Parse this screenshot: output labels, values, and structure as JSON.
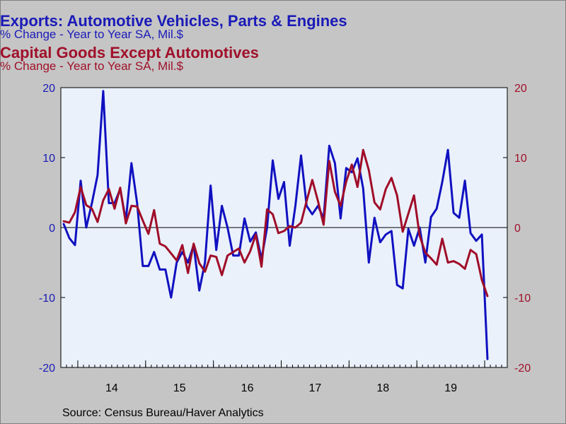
{
  "titles": {
    "series1_title": "Exports: Automotive Vehicles, Parts & Engines",
    "series1_subtitle": "% Change - Year to Year    SA, Mil.$",
    "series2_title": "Capital Goods Except Automotives",
    "series2_subtitle": "% Change - Year to Year    SA, Mil.$"
  },
  "source": "Source:  Census Bureau/Haver Analytics",
  "colors": {
    "series1": "#1010c0",
    "series2": "#a00c28",
    "plot_bg": "#eaf1fb",
    "page_bg": "#c5c5c5"
  },
  "chart_data": {
    "type": "line",
    "ylim_left": [
      -20,
      20
    ],
    "ylim_right": [
      -20,
      20
    ],
    "yticks_left": [
      "20",
      "10",
      "0",
      "-10",
      "-20"
    ],
    "yticks_right": [
      "20",
      "10",
      "0",
      "-10",
      "-20"
    ],
    "xtick_labels": [
      "14",
      "15",
      "16",
      "17",
      "18",
      "19"
    ],
    "x_start": "2013-10",
    "x_end": "2020-04",
    "grid": false,
    "zero_line": true,
    "series": [
      {
        "name": "Exports: Automotive Vehicles, Parts & Engines",
        "axis": "left",
        "values": [
          0.5,
          -1.5,
          -2.5,
          6.7,
          0,
          3.5,
          7.5,
          19.5,
          3.5,
          3.5,
          5.5,
          1,
          9.2,
          3.5,
          -5.5,
          -5.5,
          -3.5,
          -6,
          -6,
          -10,
          -5,
          -3.5,
          -5,
          -2.5,
          -9,
          -5,
          6,
          -3.2,
          3.1,
          0,
          -4,
          -4,
          1.3,
          -2,
          -0.7,
          -4.5,
          0,
          9.6,
          4.1,
          6.5,
          -2.6,
          3.1,
          10.3,
          3.1,
          1.9,
          3.1,
          1.3,
          11.7,
          9.2,
          1.3,
          8.5,
          7.9,
          9.9,
          5.6,
          -5,
          1.4,
          -2.1,
          -1,
          -0.5,
          -8.2,
          -8.7,
          -0.2,
          -2.6,
          0,
          -5,
          1.5,
          2.7,
          6.5,
          11.1,
          2.1,
          1.4,
          6.7,
          -0.8,
          -1.9,
          -1,
          -18.8
        ]
      },
      {
        "name": "Capital Goods Except Automotives",
        "axis": "right",
        "values": [
          0.9,
          0.7,
          2.2,
          5.8,
          3.2,
          2.7,
          0.8,
          3.9,
          5.5,
          2.7,
          5.7,
          0.6,
          3.1,
          3,
          1,
          -0.9,
          2.5,
          -2.3,
          -2.7,
          -3.7,
          -4.7,
          -2.5,
          -6.5,
          -2.3,
          -5.1,
          -6.3,
          -4,
          -4.2,
          -6.8,
          -4,
          -3.5,
          -3,
          -5,
          -3.4,
          -1,
          -5.6,
          2.6,
          1.9,
          -0.8,
          -0.5,
          0.2,
          0,
          0.7,
          3.8,
          6.8,
          3.8,
          0.4,
          9.5,
          5.1,
          3.1,
          6.6,
          9,
          5.8,
          11.1,
          8.2,
          3.6,
          2.6,
          5.5,
          7.1,
          4.6,
          -0.6,
          2,
          4.6,
          -1.2,
          -3.6,
          -4.4,
          -5.3,
          -1.6,
          -5,
          -4.8,
          -5.2,
          -5.9,
          -3.2,
          -3.8,
          -7.5,
          -9.8
        ]
      }
    ]
  }
}
